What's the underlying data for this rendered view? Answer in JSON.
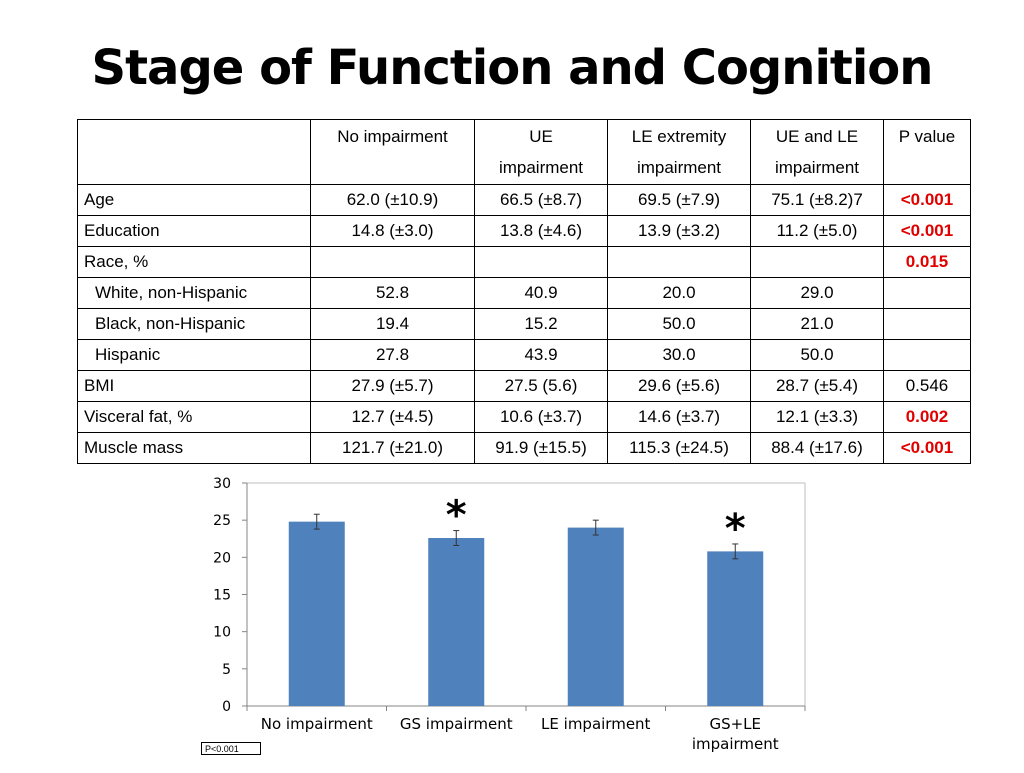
{
  "title": "Stage of Function and Cognition",
  "table": {
    "headers": [
      {
        "line1": "",
        "line2": ""
      },
      {
        "line1": "No impairment",
        "line2": ""
      },
      {
        "line1": "UE",
        "line2": "impairment"
      },
      {
        "line1": "LE extremity",
        "line2": "impairment"
      },
      {
        "line1": "UE and LE",
        "line2": "impairment"
      },
      {
        "line1": "P value",
        "line2": ""
      }
    ],
    "rows": [
      {
        "label": "Age",
        "c1": "62.0 (±10.9)",
        "c2": "66.5 (±8.7)",
        "c3": "69.5 (±7.9)",
        "c4": "75.1 (±8.2)7",
        "p": "<0.001"
      },
      {
        "label": "Education",
        "c1": "14.8 (±3.0)",
        "c2": "13.8 (±4.6)",
        "c3": "13.9 (±3.2)",
        "c4": "11.2 (±5.0)",
        "p": "<0.001"
      },
      {
        "label": "Race, %",
        "c1": "",
        "c2": "",
        "c3": "",
        "c4": "",
        "p": "0.015"
      },
      {
        "label": "White, non-Hispanic",
        "c1": "52.8",
        "c2": "40.9",
        "c3": "20.0",
        "c4": "29.0",
        "p": ""
      },
      {
        "label": "Black, non-Hispanic",
        "c1": "19.4",
        "c2": "15.2",
        "c3": "50.0",
        "c4": "21.0",
        "p": ""
      },
      {
        "label": "Hispanic",
        "c1": "27.8",
        "c2": "43.9",
        "c3": "30.0",
        "c4": "50.0",
        "p": ""
      },
      {
        "label": "BMI",
        "c1": "27.9 (±5.7)",
        "c2": "27.5 (5.6)",
        "c3": "29.6 (±5.6)",
        "c4": "28.7 (±5.4)",
        "p": "0.546"
      },
      {
        "label": "Visceral fat, %",
        "c1": "12.7 (±4.5)",
        "c2": "10.6 (±3.7)",
        "c3": "14.6 (±3.7)",
        "c4": "12.1 (±3.3)",
        "p": "0.002"
      },
      {
        "label": "Muscle mass",
        "c1": "121.7 (±21.0)",
        "c2": "91.9 (±15.5)",
        "c3": "115.3 (±24.5)",
        "c4": "88.4 (±17.6)",
        "p": "<0.001"
      }
    ]
  },
  "colors": {
    "bar": "#4f81bd",
    "significant": "#e00000"
  },
  "chart_data": {
    "type": "bar",
    "categories": [
      "No impairment",
      "GS impairment",
      "LE impairment",
      "GS+LE impairment"
    ],
    "category_lines": [
      [
        "No impairment"
      ],
      [
        "GS impairment"
      ],
      [
        "LE impairment"
      ],
      [
        "GS+LE",
        "impairment"
      ]
    ],
    "values": [
      24.8,
      22.6,
      24.0,
      20.8
    ],
    "errors": [
      1.0,
      1.0,
      1.0,
      1.0
    ],
    "significant_marker": "*",
    "significant": [
      false,
      true,
      false,
      true
    ],
    "ylim": [
      0,
      30
    ],
    "yticks": [
      0,
      5,
      10,
      15,
      20,
      25,
      30
    ],
    "title": "",
    "xlabel": "",
    "ylabel": "",
    "grid": false,
    "footnote": "P<0.001"
  }
}
